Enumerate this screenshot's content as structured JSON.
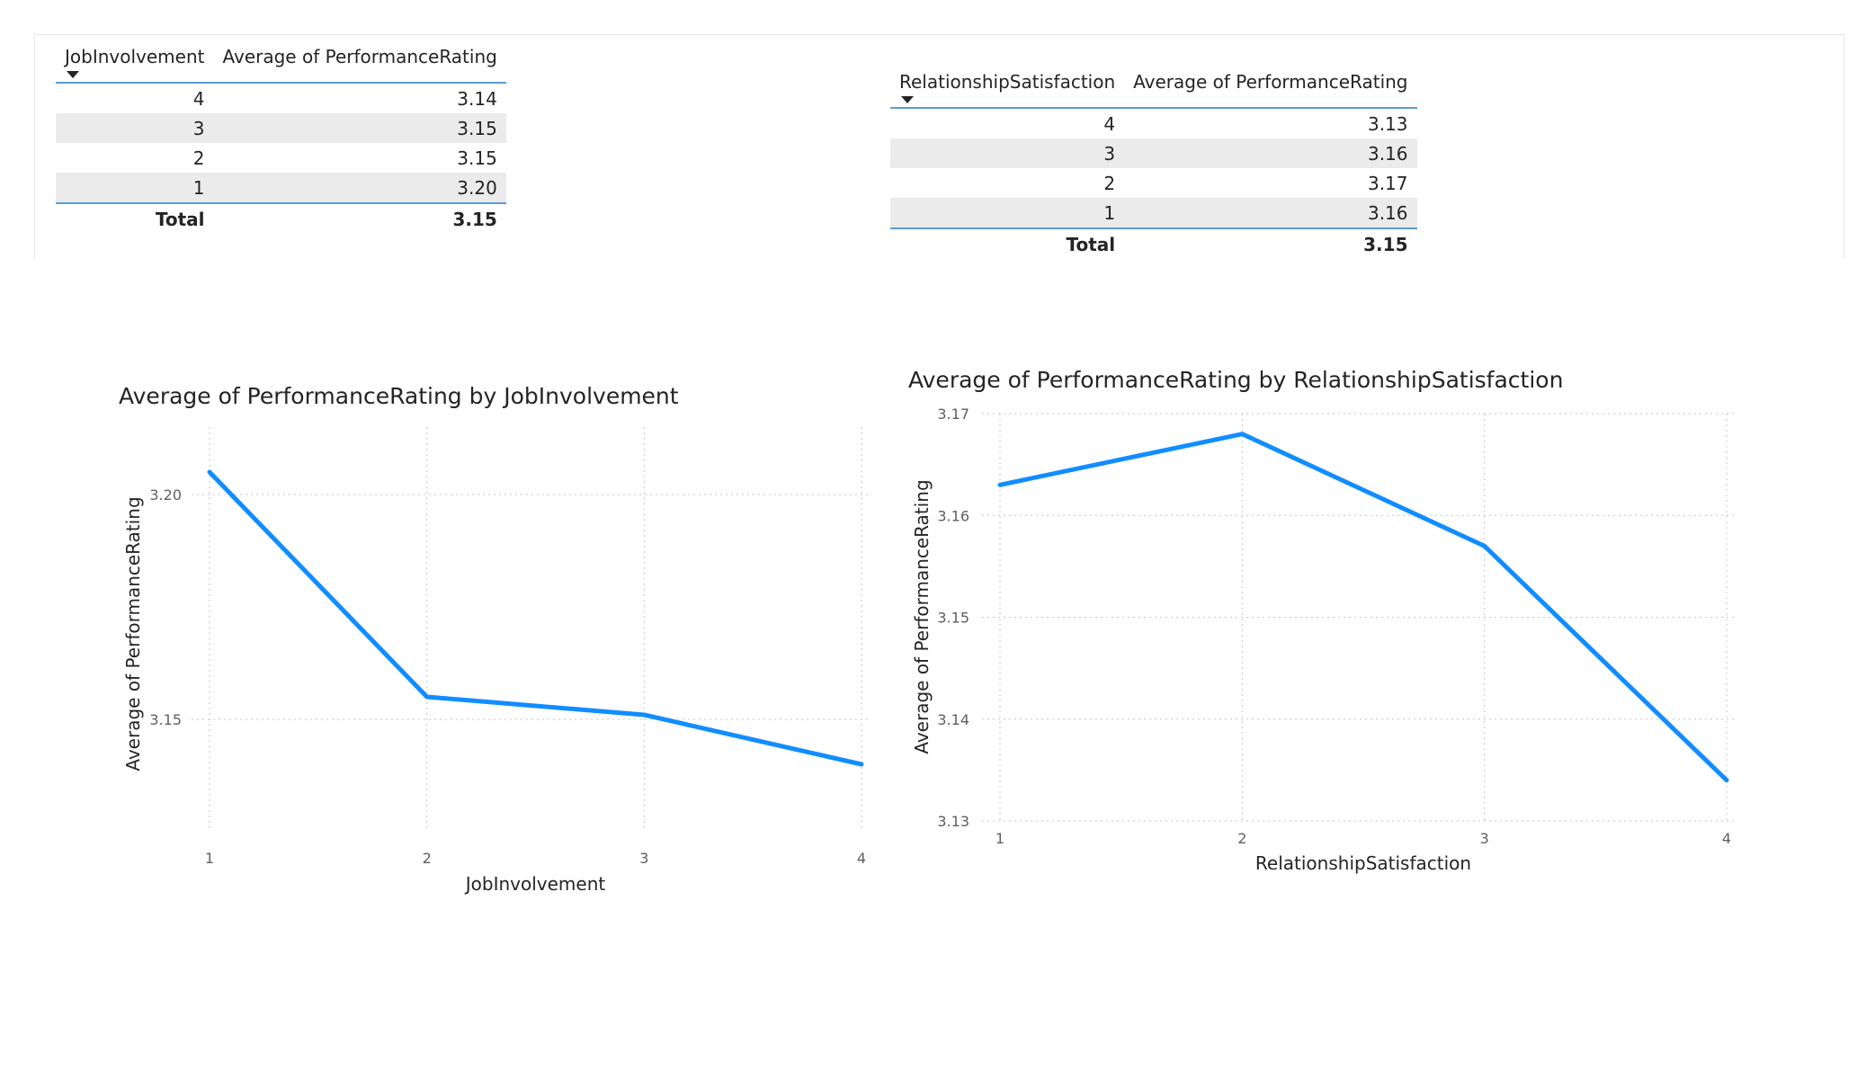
{
  "table1": {
    "col1": "JobInvolvement",
    "col2": "Average of PerformanceRating",
    "rows": [
      {
        "k": "4",
        "v": "3.14"
      },
      {
        "k": "3",
        "v": "3.15"
      },
      {
        "k": "2",
        "v": "3.15"
      },
      {
        "k": "1",
        "v": "3.20"
      }
    ],
    "total_label": "Total",
    "total_value": "3.15"
  },
  "table2": {
    "col1": "RelationshipSatisfaction",
    "col2": "Average of PerformanceRating",
    "rows": [
      {
        "k": "4",
        "v": "3.13"
      },
      {
        "k": "3",
        "v": "3.16"
      },
      {
        "k": "2",
        "v": "3.17"
      },
      {
        "k": "1",
        "v": "3.16"
      }
    ],
    "total_label": "Total",
    "total_value": "3.15"
  },
  "colors": {
    "line": "#118dff",
    "table_rule": "#5b9bd5",
    "band": "#ebebeb",
    "grid": "#c8c6c4"
  },
  "chart_data": [
    {
      "type": "line",
      "title": "Average of PerformanceRating by JobInvolvement",
      "xlabel": "JobInvolvement",
      "ylabel": "Average of PerformanceRating",
      "x": [
        1,
        2,
        3,
        4
      ],
      "series": [
        {
          "values": [
            3.205,
            3.155,
            3.151,
            3.14
          ]
        }
      ],
      "xticks": [
        "1",
        "2",
        "3",
        "4"
      ],
      "yticks": [
        3.15,
        3.2
      ],
      "ytick_labels": [
        "3.15",
        "3.20"
      ],
      "ylim": [
        3.125,
        3.215
      ],
      "grid": true
    },
    {
      "type": "line",
      "title": "Average of PerformanceRating by RelationshipSatisfaction",
      "xlabel": "RelationshipSatisfaction",
      "ylabel": "Average of PerformanceRating",
      "x": [
        1,
        2,
        3,
        4
      ],
      "series": [
        {
          "values": [
            3.163,
            3.168,
            3.157,
            3.134
          ]
        }
      ],
      "xticks": [
        "1",
        "2",
        "3",
        "4"
      ],
      "yticks": [
        3.13,
        3.14,
        3.15,
        3.16,
        3.17
      ],
      "ytick_labels": [
        "3.13",
        "3.14",
        "3.15",
        "3.16",
        "3.17"
      ],
      "ylim": [
        3.13,
        3.17
      ],
      "grid": true
    }
  ]
}
